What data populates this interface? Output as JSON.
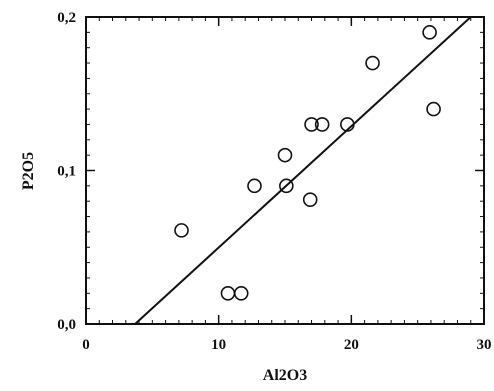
{
  "chart_data": {
    "type": "scatter",
    "title": "",
    "xlabel": "Al2O3",
    "ylabel": "P2O5",
    "xlim": [
      0,
      30
    ],
    "ylim": [
      0,
      0.2
    ],
    "x_ticks": [
      {
        "value": 0,
        "label": "0"
      },
      {
        "value": 10,
        "label": "10"
      },
      {
        "value": 20,
        "label": "20"
      },
      {
        "value": 30,
        "label": "30"
      }
    ],
    "y_ticks": [
      {
        "value": 0,
        "label": "0,0"
      },
      {
        "value": 0.1,
        "label": "0,1"
      },
      {
        "value": 0.2,
        "label": "0,2"
      }
    ],
    "x_minor_step": 1,
    "y_minor_step": 0.01,
    "grid": false,
    "legend": "none",
    "marker": "open-circle",
    "color": "#111111",
    "points": [
      {
        "x": 7.2,
        "y": 0.061
      },
      {
        "x": 10.7,
        "y": 0.02
      },
      {
        "x": 11.7,
        "y": 0.02
      },
      {
        "x": 12.7,
        "y": 0.09
      },
      {
        "x": 15.0,
        "y": 0.11
      },
      {
        "x": 15.1,
        "y": 0.09
      },
      {
        "x": 16.9,
        "y": 0.081
      },
      {
        "x": 17.0,
        "y": 0.13
      },
      {
        "x": 17.8,
        "y": 0.13
      },
      {
        "x": 19.7,
        "y": 0.13
      },
      {
        "x": 21.6,
        "y": 0.17
      },
      {
        "x": 25.9,
        "y": 0.19
      },
      {
        "x": 26.2,
        "y": 0.14
      }
    ],
    "trend_line": {
      "x": [
        3.7,
        29.0
      ],
      "y": [
        0.0,
        0.2
      ]
    }
  }
}
